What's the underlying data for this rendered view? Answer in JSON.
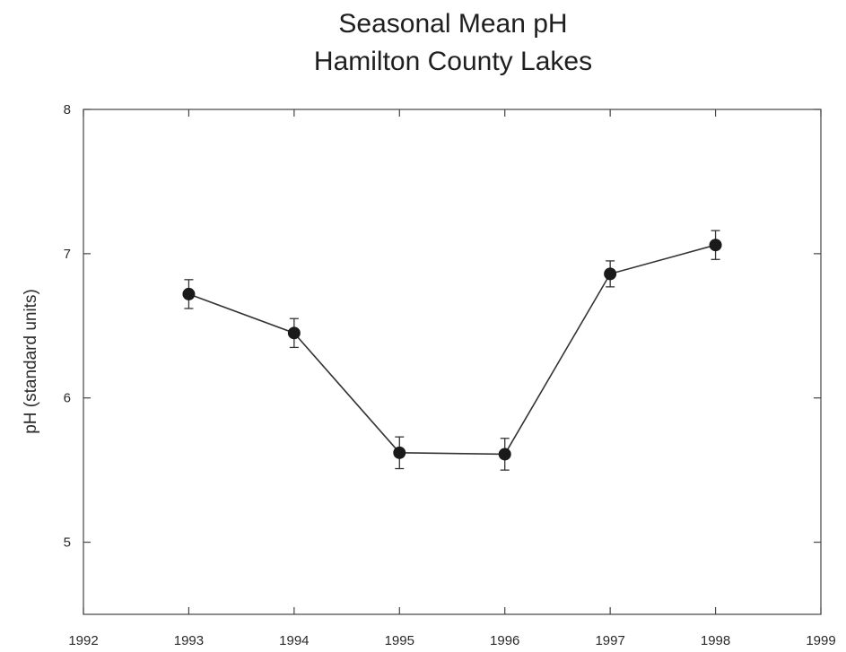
{
  "chart_data": {
    "type": "line",
    "title": "Seasonal Mean pH",
    "subtitle": "Hamilton County Lakes",
    "xlabel": "",
    "ylabel": "pH (standard units)",
    "xlim": [
      1992,
      1999
    ],
    "ylim": [
      4.5,
      8
    ],
    "x_ticks": [
      "1992",
      "1993",
      "1994",
      "1995",
      "1996",
      "1997",
      "1998",
      "1999"
    ],
    "y_ticks": [
      "5",
      "6",
      "7",
      "8"
    ],
    "grid": false,
    "legend": "none",
    "series": [
      {
        "x": [
          1993,
          1994,
          1995,
          1996,
          1997,
          1998
        ],
        "values": [
          6.72,
          6.45,
          5.62,
          5.61,
          6.86,
          7.06
        ],
        "error": [
          0.1,
          0.1,
          0.11,
          0.11,
          0.09,
          0.1
        ]
      }
    ],
    "colors": {
      "line": "#333333",
      "marker": "#1a1a1a",
      "axis": "#444444"
    }
  }
}
